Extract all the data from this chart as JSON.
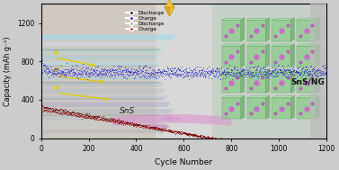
{
  "xlabel": "Cycle Number",
  "ylabel": "Capacity (mAh g⁻¹)",
  "xlim": [
    0,
    1200
  ],
  "ylim": [
    0,
    1400
  ],
  "yticks": [
    0,
    400,
    800,
    1200
  ],
  "xticks": [
    0,
    200,
    400,
    600,
    800,
    1000,
    1200
  ],
  "fig_bg": "#e8e8e8",
  "plot_bg": "#d8d8d8",
  "left_panel_color": "#c8b8a8",
  "right_panel_color": "#b8ccb8",
  "sheet_colors": [
    "#aaddee",
    "#bbddcc",
    "#ccddee",
    "#aaccdd",
    "#99ccbb",
    "#bbccee"
  ],
  "sheet_gray_colors": [
    "#aaaaaa",
    "#bbbbbb",
    "#cccccc"
  ],
  "pink_band_color": "#e8aacc",
  "yellow_color": "#ddcc00",
  "ng_dis_color": "#1515bb",
  "ng_chg_color": "#2222cc",
  "sn_dis_color": "#6b0000",
  "sn_chg_color": "#880000",
  "sns_ng_label": "SnS/NG",
  "sns_label": "SnS",
  "legend_labels": [
    "Discharge",
    "Charge",
    "Discharge",
    "Charge"
  ],
  "legend_colors": [
    "#222222",
    "#2222bb",
    "#aaaaaa",
    "#cc2222"
  ],
  "gem_color": "#e8a020",
  "gem_top_color": "#f0c040"
}
